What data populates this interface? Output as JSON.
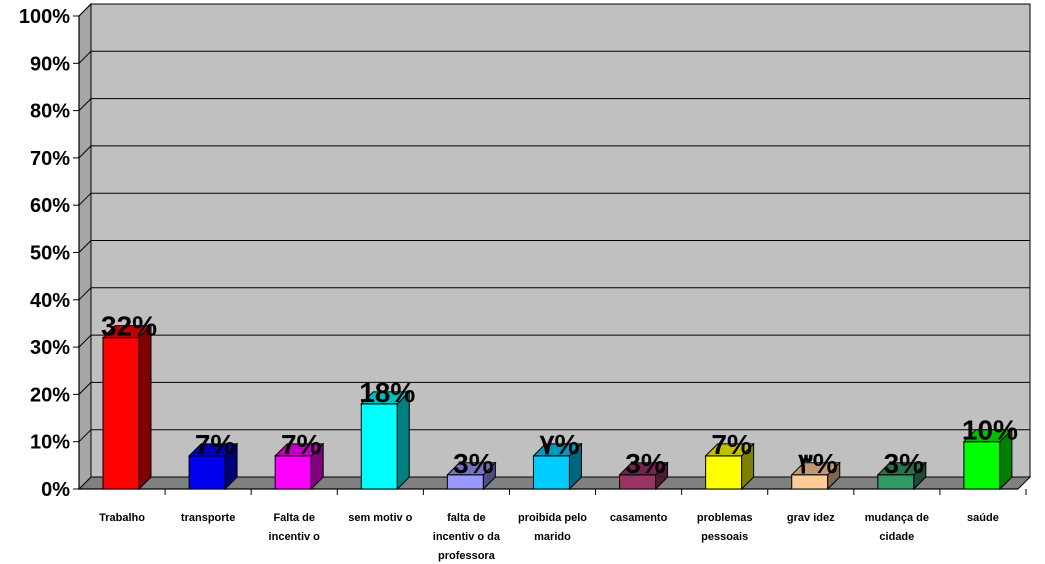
{
  "chart_data": {
    "type": "bar",
    "style": "3d-column",
    "title": "",
    "xlabel": "",
    "ylabel": "",
    "ylim": [
      0,
      100
    ],
    "y_ticks": [
      "0%",
      "10%",
      "20%",
      "30%",
      "40%",
      "50%",
      "60%",
      "70%",
      "80%",
      "90%",
      "100%"
    ],
    "grid": true,
    "legend": "none",
    "wall_color": "#c0c0c0",
    "categories": [
      {
        "label_lines": [
          "Trabalho"
        ]
      },
      {
        "label_lines": [
          "transporte"
        ]
      },
      {
        "label_lines": [
          "Falta de",
          "incentiv o"
        ]
      },
      {
        "label_lines": [
          "sem motiv o"
        ]
      },
      {
        "label_lines": [
          "falta de",
          "incentiv o da",
          "professora"
        ]
      },
      {
        "label_lines": [
          "proibida pelo",
          "marido"
        ]
      },
      {
        "label_lines": [
          "casamento"
        ]
      },
      {
        "label_lines": [
          "problemas",
          "pessoais"
        ]
      },
      {
        "label_lines": [
          "grav idez"
        ]
      },
      {
        "label_lines": [
          "mudança de",
          "cidade"
        ]
      },
      {
        "label_lines": [
          "saúde"
        ]
      }
    ],
    "values": [
      32,
      7,
      7,
      18,
      3,
      7,
      3,
      7,
      3,
      3,
      10
    ],
    "data_labels": [
      "32%",
      "7%",
      "7%",
      "18%",
      "3%",
      "٧%",
      "3%",
      "7%",
      "٣%",
      "3%",
      "10%"
    ],
    "colors": [
      "#ff0000",
      "#0000ee",
      "#ff00ff",
      "#00ffff",
      "#9999ff",
      "#00ccff",
      "#993366",
      "#ffff00",
      "#ffcc99",
      "#339966",
      "#00ff00"
    ]
  }
}
